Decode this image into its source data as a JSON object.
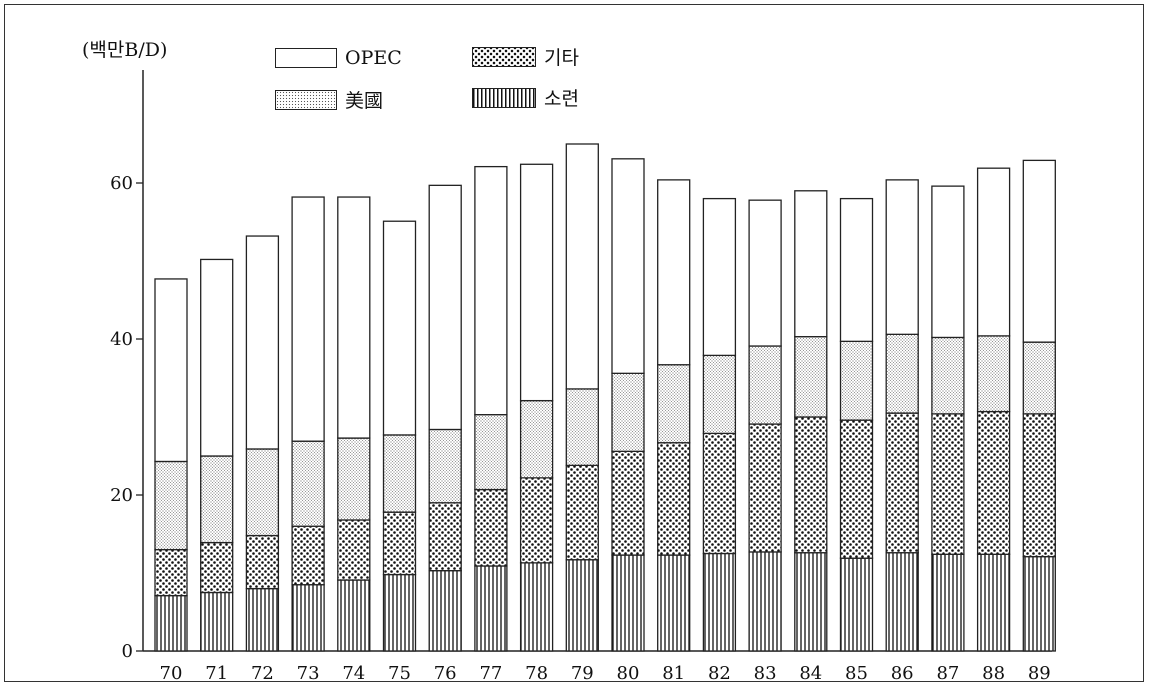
{
  "chart_data": {
    "type": "bar",
    "stacked": true,
    "unit_label": "(백만B/D)",
    "categories": [
      "70",
      "71",
      "72",
      "73",
      "74",
      "75",
      "76",
      "77",
      "78",
      "79",
      "80",
      "81",
      "82",
      "83",
      "84",
      "85",
      "86",
      "87",
      "88",
      "89"
    ],
    "ylim": [
      0,
      70
    ],
    "yticks": [
      0,
      20,
      40,
      60
    ],
    "grid": false,
    "legend_position": "top",
    "series": [
      {
        "name": "소련",
        "pattern": "vertical-lines",
        "values": [
          7.1,
          7.5,
          8.0,
          8.5,
          9.1,
          9.8,
          10.3,
          10.9,
          11.3,
          11.7,
          12.3,
          12.3,
          12.5,
          12.7,
          12.6,
          11.9,
          12.6,
          12.4,
          12.4,
          12.1
        ]
      },
      {
        "name": "기타",
        "pattern": "dense-dots",
        "values": [
          5.9,
          6.4,
          6.8,
          7.5,
          7.7,
          8.0,
          8.7,
          9.8,
          10.9,
          12.1,
          13.3,
          14.4,
          15.4,
          16.4,
          17.4,
          17.7,
          17.9,
          18.0,
          18.3,
          18.3
        ]
      },
      {
        "name": "美國",
        "pattern": "light-stipple",
        "values": [
          11.3,
          11.1,
          11.1,
          10.9,
          10.5,
          9.9,
          9.4,
          9.6,
          9.9,
          9.8,
          10.0,
          10.0,
          10.0,
          10.0,
          10.3,
          10.1,
          10.1,
          9.8,
          9.7,
          9.2
        ]
      },
      {
        "name": "OPEC",
        "pattern": "blank",
        "values": [
          23.4,
          25.2,
          27.3,
          31.3,
          30.9,
          27.4,
          31.3,
          31.8,
          30.3,
          31.4,
          27.5,
          23.7,
          20.1,
          18.7,
          18.7,
          18.3,
          19.8,
          19.4,
          21.5,
          23.3
        ]
      }
    ],
    "legend": [
      {
        "name": "OPEC",
        "pattern": "blank"
      },
      {
        "name": "기타",
        "pattern": "dense-dots"
      },
      {
        "name": "美國",
        "pattern": "light-stipple"
      },
      {
        "name": "소련",
        "pattern": "vertical-lines"
      }
    ]
  }
}
